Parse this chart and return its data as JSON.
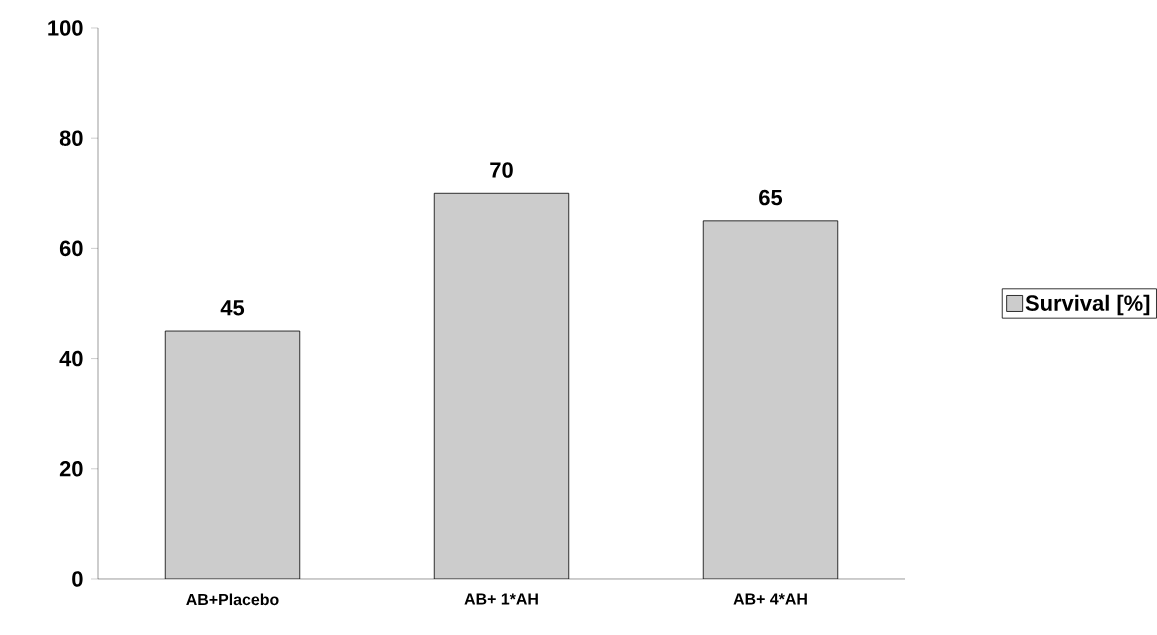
{
  "chart_data": {
    "type": "bar",
    "categories": [
      "AB+Placebo",
      "AB+ 1*AH",
      "AB+ 4*AH"
    ],
    "series": [
      {
        "name": "Survival [%]",
        "color": "#cccccc",
        "values": [
          45,
          70,
          65
        ]
      }
    ],
    "ylim": [
      0,
      100
    ],
    "yticks": [
      0,
      20,
      40,
      60,
      80,
      100
    ],
    "data_labels": true,
    "legend": "right",
    "grid": false
  }
}
